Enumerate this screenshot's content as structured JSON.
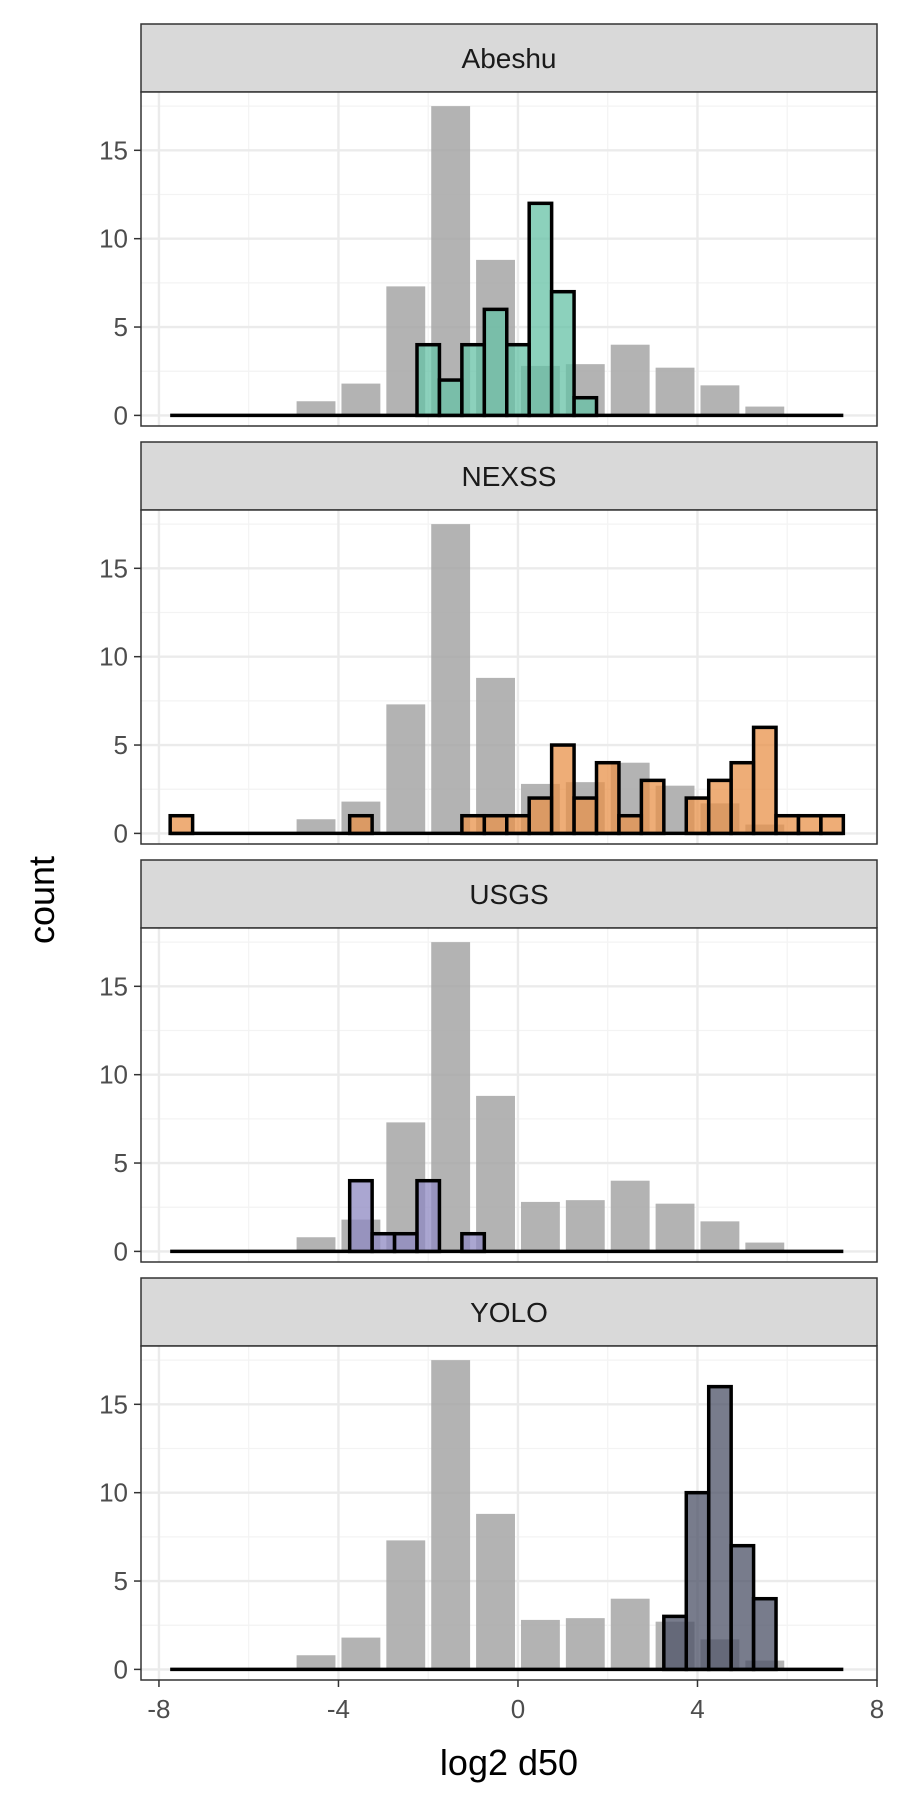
{
  "chart_data": {
    "type": "histogram",
    "x": {
      "label": "log2 d50",
      "range": [
        -8.4,
        8
      ],
      "ticks": [
        -8,
        -4,
        0,
        4,
        8
      ],
      "tick_labels": [
        "-8",
        "-4",
        "0",
        "4",
        "8"
      ]
    },
    "y": {
      "label": "count",
      "range": [
        -0.6,
        18.3
      ],
      "ticks": [
        0,
        5,
        10,
        15
      ],
      "tick_labels": [
        "0",
        "5",
        "10",
        "15"
      ]
    },
    "background": {
      "color": "#a6a6a6",
      "bin_width": 1,
      "bars": [
        {
          "center": -4.5,
          "count": 0.8
        },
        {
          "center": -3.5,
          "count": 1.8
        },
        {
          "center": -2.5,
          "count": 7.3
        },
        {
          "center": -1.5,
          "count": 17.5
        },
        {
          "center": -0.5,
          "count": 8.8
        },
        {
          "center": 0.5,
          "count": 2.8
        },
        {
          "center": 1.5,
          "count": 2.9
        },
        {
          "center": 2.5,
          "count": 4.0
        },
        {
          "center": 3.5,
          "count": 2.7
        },
        {
          "center": 4.5,
          "count": 1.7
        },
        {
          "center": 5.5,
          "count": 0.5
        }
      ]
    },
    "panels": [
      {
        "name": "Abeshu",
        "color": "#66c2a5",
        "bin_width": 0.5,
        "bars": [
          {
            "center": -2.0,
            "count": 4
          },
          {
            "center": -1.5,
            "count": 2
          },
          {
            "center": -1.0,
            "count": 4
          },
          {
            "center": -0.5,
            "count": 6
          },
          {
            "center": 0.0,
            "count": 4
          },
          {
            "center": 0.5,
            "count": 12
          },
          {
            "center": 1.0,
            "count": 7
          },
          {
            "center": 1.5,
            "count": 1
          }
        ]
      },
      {
        "name": "NEXSS",
        "color": "#e8914a",
        "bin_width": 0.5,
        "bars": [
          {
            "center": -7.5,
            "count": 1
          },
          {
            "center": -3.5,
            "count": 1
          },
          {
            "center": -1.0,
            "count": 1
          },
          {
            "center": -0.5,
            "count": 1
          },
          {
            "center": 0.0,
            "count": 1
          },
          {
            "center": 0.5,
            "count": 2
          },
          {
            "center": 1.0,
            "count": 5
          },
          {
            "center": 1.5,
            "count": 2
          },
          {
            "center": 2.0,
            "count": 4
          },
          {
            "center": 2.5,
            "count": 1
          },
          {
            "center": 3.0,
            "count": 3
          },
          {
            "center": 4.0,
            "count": 2
          },
          {
            "center": 4.5,
            "count": 3
          },
          {
            "center": 5.0,
            "count": 4
          },
          {
            "center": 5.5,
            "count": 6
          },
          {
            "center": 6.0,
            "count": 1
          },
          {
            "center": 6.5,
            "count": 1
          },
          {
            "center": 7.0,
            "count": 1
          }
        ]
      },
      {
        "name": "USGS",
        "color": "#8d88c2",
        "bin_width": 0.5,
        "bars": [
          {
            "center": -3.5,
            "count": 4
          },
          {
            "center": -3.0,
            "count": 1
          },
          {
            "center": -2.5,
            "count": 1
          },
          {
            "center": -2.0,
            "count": 4
          },
          {
            "center": -1.0,
            "count": 1
          }
        ]
      },
      {
        "name": "YOLO",
        "color": "#4b5066",
        "bin_width": 0.5,
        "bars": [
          {
            "center": 3.5,
            "count": 3
          },
          {
            "center": 4.0,
            "count": 10
          },
          {
            "center": 4.5,
            "count": 16
          },
          {
            "center": 5.0,
            "count": 7
          },
          {
            "center": 5.5,
            "count": 4
          }
        ]
      }
    ],
    "baseline_range": [
      -7.75,
      7.25
    ],
    "grid": true
  }
}
